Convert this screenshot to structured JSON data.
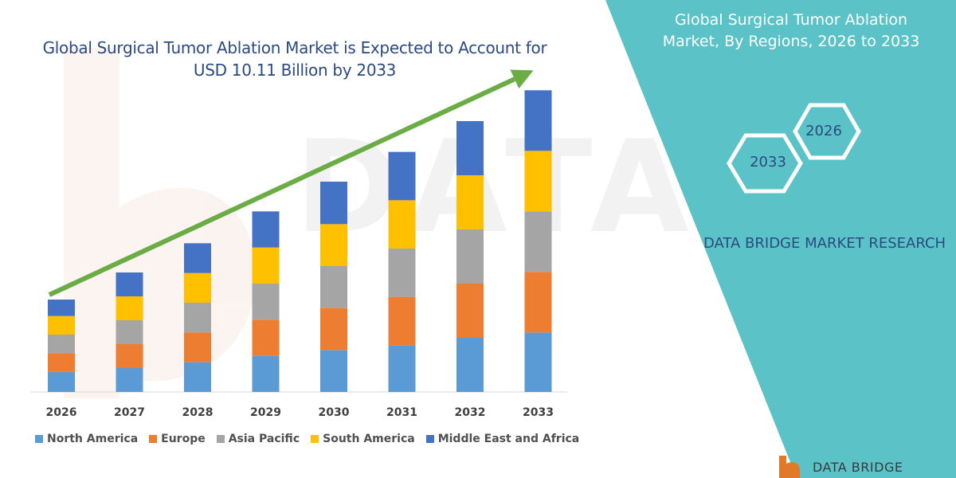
{
  "title": "Global Surgical Tumor Ablation Market is Expected to Account for USD 10.11 Billion by 2033",
  "side_panel": {
    "title": "Global Surgical Tumor Ablation Market, By Regions, 2026 to 2033",
    "hex_labels": [
      "2033",
      "2026"
    ],
    "brand": "DATA BRIDGE MARKET RESEARCH",
    "bottom_brand": "DATA BRIDGE",
    "colors": {
      "panel": "#5bc3c8",
      "hex_stroke": "#ffffff",
      "brand_text": "#2b4a82"
    }
  },
  "chart_data": {
    "type": "bar",
    "stacked": true,
    "title": "Global Surgical Tumor Ablation Market is Expected to Account for USD 10.11 Billion by 2033",
    "xlabel": "",
    "ylabel": "",
    "categories": [
      "2026",
      "2027",
      "2028",
      "2029",
      "2030",
      "2031",
      "2032",
      "2033"
    ],
    "series": [
      {
        "name": "North America",
        "color": "#5b9bd5",
        "values": [
          1.9,
          2.25,
          2.8,
          3.4,
          3.95,
          4.4,
          5.1,
          5.6
        ]
      },
      {
        "name": "Europe",
        "color": "#ed7d31",
        "values": [
          1.75,
          2.25,
          2.8,
          3.4,
          3.95,
          4.55,
          5.1,
          5.7
        ]
      },
      {
        "name": "Asia Pacific",
        "color": "#a5a5a5",
        "values": [
          1.75,
          2.25,
          2.8,
          3.4,
          3.95,
          4.55,
          5.1,
          5.7
        ]
      },
      {
        "name": "South America",
        "color": "#ffc000",
        "values": [
          1.75,
          2.25,
          2.8,
          3.4,
          3.95,
          4.55,
          5.1,
          5.7
        ]
      },
      {
        "name": "Middle East and Africa",
        "color": "#4472c4",
        "values": [
          1.55,
          2.25,
          2.8,
          3.4,
          4.0,
          4.55,
          5.1,
          5.7
        ]
      }
    ],
    "ylim": [
      0,
      30
    ],
    "grid": false,
    "legend": "bottom",
    "trend_arrow": {
      "color": "#6aad45",
      "from_category": "2026",
      "to_category": "2033"
    }
  }
}
